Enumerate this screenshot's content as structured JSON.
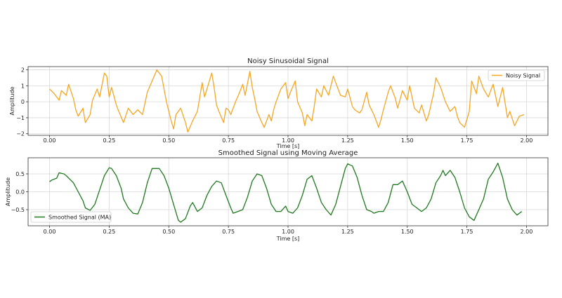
{
  "chart_data": [
    {
      "type": "line",
      "title": "Noisy Sinusoidal Signal",
      "xlabel": "Time [s]",
      "ylabel": "Amplitude",
      "xlim": [
        -0.09,
        2.09
      ],
      "ylim": [
        -2.1,
        2.2
      ],
      "xticks": [
        "0.00",
        "0.25",
        "0.50",
        "0.75",
        "1.00",
        "1.25",
        "1.50",
        "1.75",
        "2.00"
      ],
      "yticks": [
        "2",
        "1",
        "0",
        "−1",
        "−2"
      ],
      "grid": true,
      "legend_position": "top-right",
      "series": [
        {
          "name": "Noisy Signal",
          "color": "#f5a623",
          "x": [
            0.0,
            0.02,
            0.04,
            0.05,
            0.07,
            0.08,
            0.1,
            0.11,
            0.12,
            0.14,
            0.15,
            0.17,
            0.18,
            0.2,
            0.21,
            0.23,
            0.24,
            0.25,
            0.26,
            0.28,
            0.29,
            0.31,
            0.33,
            0.35,
            0.37,
            0.39,
            0.41,
            0.43,
            0.45,
            0.47,
            0.49,
            0.51,
            0.52,
            0.53,
            0.55,
            0.57,
            0.58,
            0.6,
            0.62,
            0.64,
            0.65,
            0.66,
            0.68,
            0.69,
            0.7,
            0.71,
            0.73,
            0.74,
            0.75,
            0.76,
            0.78,
            0.8,
            0.81,
            0.82,
            0.84,
            0.85,
            0.86,
            0.87,
            0.89,
            0.9,
            0.92,
            0.93,
            0.94,
            0.95,
            0.97,
            0.99,
            1.0,
            1.01,
            1.03,
            1.04,
            1.06,
            1.07,
            1.08,
            1.1,
            1.11,
            1.12,
            1.14,
            1.15,
            1.17,
            1.19,
            1.2,
            1.22,
            1.24,
            1.25,
            1.27,
            1.28,
            1.3,
            1.31,
            1.33,
            1.34,
            1.36,
            1.38,
            1.39,
            1.4,
            1.42,
            1.43,
            1.45,
            1.46,
            1.48,
            1.5,
            1.51,
            1.53,
            1.55,
            1.56,
            1.58,
            1.59,
            1.61,
            1.62,
            1.64,
            1.66,
            1.68,
            1.7,
            1.71,
            1.72,
            1.74,
            1.76,
            1.77,
            1.79,
            1.8,
            1.82,
            1.84,
            1.86,
            1.88,
            1.9,
            1.92,
            1.93,
            1.95,
            1.97,
            1.99
          ],
          "y": [
            0.8,
            0.5,
            0.1,
            0.7,
            0.4,
            1.1,
            0.2,
            -0.5,
            -0.9,
            -0.4,
            -1.3,
            -0.8,
            0.1,
            0.8,
            0.3,
            1.8,
            1.6,
            0.3,
            0.9,
            -0.2,
            -0.6,
            -1.3,
            -0.4,
            -0.8,
            -0.5,
            -0.8,
            0.6,
            1.3,
            2.0,
            1.6,
            0.0,
            -1.2,
            -1.7,
            -0.8,
            -0.4,
            -1.3,
            -1.9,
            -1.2,
            -0.6,
            1.2,
            0.3,
            0.8,
            1.8,
            0.9,
            -0.2,
            -0.6,
            -1.3,
            -0.4,
            -0.5,
            -0.8,
            0.0,
            0.7,
            1.1,
            0.4,
            1.9,
            0.9,
            0.2,
            -0.6,
            -1.3,
            -1.6,
            -0.8,
            -1.2,
            -0.5,
            0.0,
            0.8,
            1.2,
            0.2,
            0.6,
            1.3,
            0.0,
            -0.7,
            -1.5,
            -0.8,
            -1.2,
            -0.3,
            0.8,
            0.3,
            1.0,
            0.4,
            1.6,
            1.2,
            0.4,
            0.3,
            0.8,
            -0.3,
            -0.5,
            -0.7,
            -0.5,
            0.6,
            -0.2,
            -0.8,
            -1.6,
            -1.1,
            -0.5,
            0.6,
            1.0,
            0.2,
            -0.4,
            0.7,
            0.1,
            1.0,
            -0.4,
            -0.7,
            -0.2,
            -1.2,
            -0.8,
            0.5,
            1.5,
            0.9,
            0.0,
            -0.6,
            -0.3,
            -0.9,
            -1.3,
            -1.6,
            -0.6,
            1.3,
            0.5,
            1.6,
            0.8,
            0.3,
            1.1,
            -0.3,
            0.9,
            -1.0,
            -0.6,
            -1.5,
            -0.9,
            -0.8
          ]
        }
      ]
    },
    {
      "type": "line",
      "title": "Smoothed Signal using Moving Average",
      "xlabel": "Time [s]",
      "ylabel": "Amplitude",
      "xlim": [
        -0.09,
        2.09
      ],
      "ylim": [
        -0.95,
        0.95
      ],
      "xticks": [
        "0.00",
        "0.25",
        "0.50",
        "0.75",
        "1.00",
        "1.25",
        "1.50",
        "1.75",
        "2.00"
      ],
      "yticks": [
        "0.5",
        "0.0",
        "−0.5"
      ],
      "grid": true,
      "legend_position": "bottom-left",
      "series": [
        {
          "name": "Smoothed Signal (MA)",
          "color": "#1f7a1f",
          "x": [
            0.0,
            0.01,
            0.03,
            0.04,
            0.06,
            0.07,
            0.1,
            0.12,
            0.14,
            0.15,
            0.17,
            0.19,
            0.21,
            0.23,
            0.25,
            0.26,
            0.28,
            0.3,
            0.31,
            0.33,
            0.35,
            0.37,
            0.39,
            0.41,
            0.43,
            0.46,
            0.48,
            0.5,
            0.52,
            0.54,
            0.55,
            0.57,
            0.59,
            0.6,
            0.62,
            0.64,
            0.66,
            0.68,
            0.7,
            0.72,
            0.74,
            0.76,
            0.77,
            0.79,
            0.81,
            0.83,
            0.85,
            0.87,
            0.89,
            0.91,
            0.93,
            0.95,
            0.97,
            0.99,
            1.0,
            1.02,
            1.04,
            1.06,
            1.08,
            1.1,
            1.12,
            1.14,
            1.16,
            1.18,
            1.2,
            1.22,
            1.24,
            1.25,
            1.27,
            1.29,
            1.31,
            1.33,
            1.35,
            1.36,
            1.38,
            1.4,
            1.42,
            1.44,
            1.46,
            1.48,
            1.5,
            1.52,
            1.54,
            1.56,
            1.58,
            1.6,
            1.62,
            1.64,
            1.65,
            1.66,
            1.68,
            1.7,
            1.72,
            1.74,
            1.76,
            1.78,
            1.8,
            1.82,
            1.84,
            1.86,
            1.88,
            1.9,
            1.92,
            1.94,
            1.96,
            1.98
          ],
          "y": [
            0.28,
            0.33,
            0.38,
            0.53,
            0.5,
            0.45,
            0.25,
            0.0,
            -0.25,
            -0.45,
            -0.52,
            -0.35,
            0.05,
            0.45,
            0.67,
            0.65,
            0.45,
            0.1,
            -0.2,
            -0.45,
            -0.6,
            -0.62,
            -0.3,
            0.25,
            0.65,
            0.65,
            0.45,
            0.1,
            -0.35,
            -0.8,
            -0.85,
            -0.75,
            -0.4,
            -0.3,
            -0.55,
            -0.45,
            -0.1,
            0.15,
            0.3,
            0.25,
            -0.1,
            -0.45,
            -0.6,
            -0.55,
            -0.5,
            -0.15,
            0.3,
            0.5,
            0.45,
            0.1,
            -0.35,
            -0.55,
            -0.55,
            -0.4,
            -0.55,
            -0.6,
            -0.45,
            -0.1,
            0.35,
            0.45,
            0.1,
            -0.3,
            -0.5,
            -0.65,
            -0.35,
            0.15,
            0.65,
            0.78,
            0.72,
            0.4,
            -0.1,
            -0.5,
            -0.55,
            -0.6,
            -0.55,
            -0.55,
            -0.3,
            0.2,
            0.2,
            0.3,
            0.0,
            -0.35,
            -0.45,
            -0.55,
            -0.45,
            -0.2,
            0.25,
            0.45,
            0.6,
            0.45,
            0.6,
            0.4,
            0.0,
            -0.45,
            -0.7,
            -0.8,
            -0.5,
            -0.2,
            0.35,
            0.55,
            0.8,
            0.4,
            -0.2,
            -0.5,
            -0.65,
            -0.55
          ]
        }
      ]
    }
  ]
}
